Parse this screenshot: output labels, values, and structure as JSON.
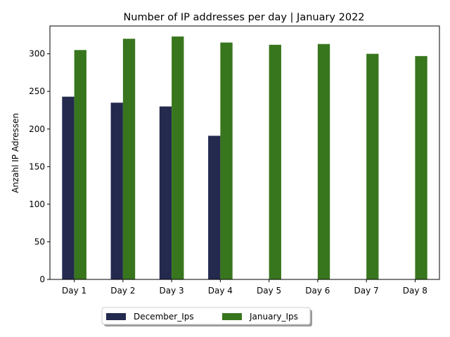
{
  "chart_data": {
    "type": "bar",
    "title": "Number of IP addresses per day | January 2022",
    "xlabel": "",
    "ylabel": "Anzahl IP Adressen",
    "categories": [
      "Day 1",
      "Day 2",
      "Day 3",
      "Day 4",
      "Day 5",
      "Day 6",
      "Day 7",
      "Day 8"
    ],
    "series": [
      {
        "name": "December_Ips",
        "color": "#232a4e",
        "values": [
          243,
          235,
          230,
          191,
          null,
          null,
          null,
          null
        ]
      },
      {
        "name": "January_Ips",
        "color": "#38761d",
        "values": [
          305,
          320,
          323,
          315,
          312,
          313,
          300,
          297
        ]
      }
    ],
    "ylim": [
      0,
      337
    ],
    "yticks": [
      0,
      50,
      100,
      150,
      200,
      250,
      300
    ],
    "grid": false,
    "legend_position": "bottom-center"
  }
}
